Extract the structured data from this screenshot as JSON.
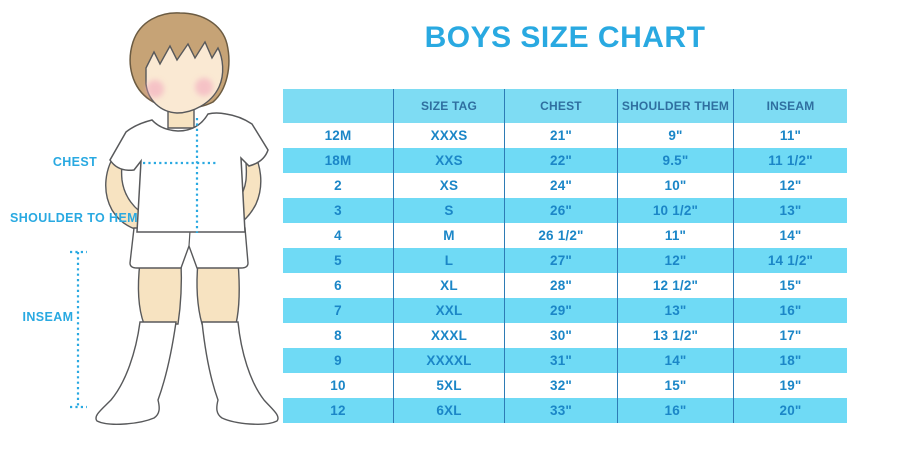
{
  "title": "BOYS SIZE CHART",
  "chart_data": {
    "type": "table",
    "title": "BOYS SIZE CHART",
    "columns": [
      "",
      "SIZE TAG",
      "CHEST",
      "SHOULDER THEM",
      "INSEAM"
    ],
    "rows": [
      [
        "12M",
        "XXXS",
        "21\"",
        "9\"",
        "11\""
      ],
      [
        "18M",
        "XXS",
        "22\"",
        "9.5\"",
        "11 1/2\""
      ],
      [
        "2",
        "XS",
        "24\"",
        "10\"",
        "12\""
      ],
      [
        "3",
        "S",
        "26\"",
        "10 1/2\"",
        "13\""
      ],
      [
        "4",
        "M",
        "26 1/2\"",
        "11\"",
        "14\""
      ],
      [
        "5",
        "L",
        "27\"",
        "12\"",
        "14 1/2\""
      ],
      [
        "6",
        "XL",
        "28\"",
        "12 1/2\"",
        "15\""
      ],
      [
        "7",
        "XXL",
        "29\"",
        "13\"",
        "16\""
      ],
      [
        "8",
        "XXXL",
        "30\"",
        "13 1/2\"",
        "17\""
      ],
      [
        "9",
        "XXXXL",
        "31\"",
        "14\"",
        "18\""
      ],
      [
        "10",
        "5XL",
        "32\"",
        "15\"",
        "19\""
      ],
      [
        "12",
        "6XL",
        "33\"",
        "16\"",
        "20\""
      ]
    ],
    "row_stripe_pattern": "alternating white / cyan, starting white",
    "legend_position": "none",
    "grid": "vertical dividers only"
  },
  "diagram": {
    "labels": {
      "chest": "CHEST",
      "shoulder_to_hem": "SHOULDER TO HEM",
      "inseam": "INSEAM"
    }
  },
  "colors": {
    "title_blue": "#29A9E1",
    "row_cyan": "#6FDAF5",
    "header_cyan": "#7EDCF3",
    "header_text": "#2F6FA0",
    "cell_text": "#1B86C7",
    "divider_blue": "#2E7BB5",
    "dotted_line_blue": "#29A9E1",
    "hair_brown": "#C6A376",
    "skin": "#F7E3C1"
  }
}
